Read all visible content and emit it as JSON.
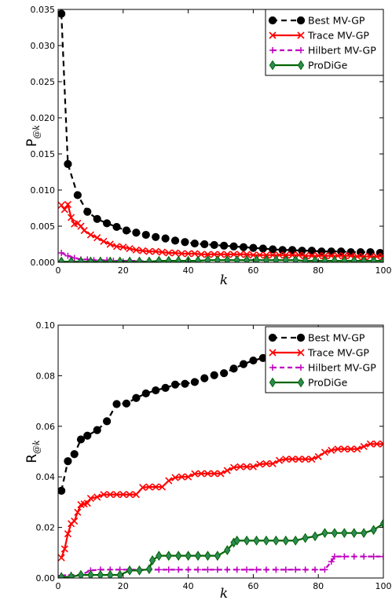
{
  "chart_data": [
    {
      "type": "line",
      "ylabel": "P",
      "ylabel_subscript": "@k",
      "xlabel": "k",
      "xlim": [
        0,
        100
      ],
      "ylim": [
        0,
        0.035
      ],
      "xticks": [
        "0",
        "20",
        "40",
        "60",
        "80",
        "100"
      ],
      "yticks": [
        "0.000",
        "0.005",
        "0.010",
        "0.015",
        "0.020",
        "0.025",
        "0.030",
        "0.035"
      ],
      "legend_position": "top-right",
      "series": [
        {
          "name": "Best MV-GP",
          "color": "#000000",
          "dash": "dashed",
          "marker": "circle",
          "x": [
            1,
            3,
            6,
            9,
            12,
            15,
            18,
            21,
            24,
            27,
            30,
            33,
            36,
            39,
            42,
            45,
            48,
            51,
            54,
            57,
            60,
            63,
            66,
            69,
            72,
            75,
            78,
            81,
            84,
            87,
            90,
            93,
            96,
            99
          ],
          "y": [
            0.0344,
            0.0136,
            0.0093,
            0.007,
            0.006,
            0.0054,
            0.0049,
            0.0044,
            0.0041,
            0.0038,
            0.0035,
            0.0033,
            0.003,
            0.0028,
            0.0026,
            0.0025,
            0.0024,
            0.0023,
            0.0022,
            0.0021,
            0.002,
            0.0019,
            0.0018,
            0.0017,
            0.0017,
            0.0016,
            0.0016,
            0.0015,
            0.0015,
            0.0015,
            0.0014,
            0.0014,
            0.0014,
            0.0013
          ]
        },
        {
          "name": "Trace MV-GP",
          "color": "#ff0000",
          "dash": "solid",
          "marker": "x",
          "x": [
            1,
            2,
            3,
            4,
            5,
            6,
            7,
            8,
            10,
            12,
            14,
            16,
            18,
            20,
            22,
            24,
            26,
            28,
            30,
            32,
            34,
            36,
            38,
            40,
            42,
            44,
            46,
            48,
            50,
            52,
            54,
            56,
            58,
            60,
            62,
            64,
            66,
            68,
            70,
            72,
            74,
            76,
            78,
            80,
            82,
            84,
            86,
            88,
            90,
            92,
            94,
            96,
            98,
            100
          ],
          "y": [
            0.0079,
            0.0073,
            0.008,
            0.0062,
            0.0053,
            0.0054,
            0.005,
            0.0044,
            0.0038,
            0.0034,
            0.0029,
            0.0025,
            0.0022,
            0.0021,
            0.0019,
            0.0017,
            0.0016,
            0.0015,
            0.0015,
            0.0014,
            0.0013,
            0.0013,
            0.0012,
            0.0012,
            0.0012,
            0.0011,
            0.0011,
            0.0011,
            0.0011,
            0.0011,
            0.0011,
            0.0011,
            0.0011,
            0.001,
            0.001,
            0.001,
            0.001,
            0.001,
            0.001,
            0.001,
            0.001,
            0.0009,
            0.0009,
            0.0009,
            0.0009,
            0.0009,
            0.0009,
            0.0009,
            0.0009,
            0.0008,
            0.0008,
            0.0008,
            0.0008,
            0.0008
          ]
        },
        {
          "name": "Hilbert MV-GP",
          "color": "#c000c0",
          "dash": "dashed",
          "marker": "plus",
          "x": [
            1,
            3,
            5,
            7,
            9,
            11,
            13,
            15,
            17,
            19,
            22,
            25,
            28
          ],
          "y": [
            0.0013,
            0.0009,
            0.0006,
            0.0004,
            0.0004,
            0.0003,
            0.0003,
            0.0003,
            0.0002,
            0.0002,
            0.0002,
            0.0002,
            0.0001
          ]
        },
        {
          "name": "ProDiGe",
          "color": "#006400",
          "fill": "#2e8b57",
          "dash": "solid",
          "marker": "diamond",
          "x": [
            1,
            4,
            7,
            10,
            13,
            16,
            19,
            22,
            25,
            28,
            31,
            34,
            37,
            40,
            43,
            46,
            49,
            52,
            55,
            58,
            61,
            64,
            67,
            70,
            73,
            76,
            79,
            82,
            85,
            88,
            91,
            94,
            97,
            100
          ],
          "y": [
            0.0001,
            0.0001,
            0.0001,
            0.0001,
            0.0001,
            0.0001,
            0.0001,
            0.0001,
            0.0001,
            0.0001,
            0.0002,
            0.0002,
            0.0002,
            0.0002,
            0.0002,
            0.0003,
            0.0003,
            0.0003,
            0.0003,
            0.0003,
            0.0003,
            0.0003,
            0.0003,
            0.0003,
            0.0003,
            0.0002,
            0.0002,
            0.0002,
            0.0002,
            0.0002,
            0.0002,
            0.0002,
            0.0002,
            0.0002
          ]
        }
      ]
    },
    {
      "type": "line",
      "ylabel": "R",
      "ylabel_subscript": "@k",
      "xlabel": "k",
      "xlim": [
        0,
        100
      ],
      "ylim": [
        0,
        0.1
      ],
      "xticks": [
        "0",
        "20",
        "40",
        "60",
        "80",
        "100"
      ],
      "yticks": [
        "0.00",
        "0.02",
        "0.04",
        "0.06",
        "0.08",
        "0.10"
      ],
      "legend_position": "top-right",
      "series": [
        {
          "name": "Best MV-GP",
          "color": "#000000",
          "dash": "dashed",
          "marker": "circle",
          "x": [
            1,
            3,
            5,
            7,
            9,
            12,
            15,
            18,
            21,
            24,
            27,
            30,
            33,
            36,
            39,
            42,
            45,
            48,
            51,
            54,
            57,
            60,
            63,
            66,
            69,
            72,
            75,
            78,
            81,
            84,
            87,
            90,
            93,
            96,
            99
          ],
          "y": [
            0.0345,
            0.0462,
            0.049,
            0.0548,
            0.0563,
            0.0585,
            0.062,
            0.0688,
            0.069,
            0.0712,
            0.073,
            0.0742,
            0.0752,
            0.0765,
            0.0768,
            0.0775,
            0.079,
            0.0802,
            0.081,
            0.0828,
            0.0846,
            0.086,
            0.087,
            0.0878,
            0.088,
            0.0888,
            0.0897,
            0.09,
            0.0905,
            0.0915,
            0.0927,
            0.093,
            0.094,
            0.095,
            0.097
          ]
        },
        {
          "name": "Trace MV-GP",
          "color": "#ff0000",
          "dash": "solid",
          "marker": "x",
          "x": [
            1,
            2,
            3,
            4,
            5,
            6,
            7,
            8,
            9,
            10,
            12,
            14,
            16,
            18,
            20,
            22,
            24,
            26,
            28,
            30,
            32,
            34,
            36,
            38,
            40,
            42,
            44,
            46,
            48,
            50,
            52,
            54,
            56,
            58,
            60,
            62,
            64,
            66,
            68,
            70,
            72,
            74,
            76,
            78,
            80,
            82,
            84,
            86,
            88,
            90,
            92,
            94,
            96,
            98,
            100
          ],
          "y": [
            0.008,
            0.0115,
            0.0175,
            0.0215,
            0.0225,
            0.026,
            0.029,
            0.0293,
            0.0296,
            0.0315,
            0.032,
            0.033,
            0.033,
            0.033,
            0.033,
            0.033,
            0.033,
            0.0358,
            0.036,
            0.036,
            0.036,
            0.0385,
            0.0397,
            0.04,
            0.04,
            0.0412,
            0.0413,
            0.0413,
            0.0413,
            0.0413,
            0.0425,
            0.0437,
            0.044,
            0.044,
            0.044,
            0.045,
            0.0452,
            0.0452,
            0.0465,
            0.047,
            0.047,
            0.047,
            0.047,
            0.047,
            0.048,
            0.0497,
            0.0505,
            0.051,
            0.051,
            0.051,
            0.051,
            0.052,
            0.053,
            0.053,
            0.053
          ]
        },
        {
          "name": "Hilbert MV-GP",
          "color": "#c000c0",
          "dash": "dashed",
          "marker": "plus",
          "x": [
            1,
            4,
            7,
            10,
            13,
            16,
            19,
            22,
            25,
            28,
            31,
            34,
            37,
            40,
            43,
            46,
            49,
            52,
            55,
            58,
            61,
            64,
            67,
            70,
            73,
            76,
            79,
            82,
            84,
            85,
            88,
            91,
            94,
            97,
            100
          ],
          "y": [
            0.001,
            0.0012,
            0.0012,
            0.003,
            0.0033,
            0.0033,
            0.0033,
            0.0033,
            0.0033,
            0.0033,
            0.0033,
            0.0033,
            0.0033,
            0.0033,
            0.0033,
            0.0033,
            0.0033,
            0.0033,
            0.0033,
            0.0033,
            0.0033,
            0.0033,
            0.0033,
            0.0033,
            0.0033,
            0.0033,
            0.0033,
            0.0033,
            0.0065,
            0.0085,
            0.0085,
            0.0085,
            0.0085,
            0.0085,
            0.0085
          ]
        },
        {
          "name": "ProDiGe",
          "color": "#006400",
          "fill": "#2e8b57",
          "dash": "solid",
          "marker": "diamond",
          "x": [
            1,
            4,
            7,
            10,
            13,
            16,
            19,
            22,
            25,
            28,
            29,
            31,
            34,
            37,
            40,
            43,
            46,
            49,
            52,
            54,
            55,
            58,
            61,
            64,
            67,
            70,
            73,
            76,
            79,
            82,
            85,
            88,
            91,
            94,
            97,
            100
          ],
          "y": [
            0.0003,
            0.0005,
            0.0012,
            0.0012,
            0.0012,
            0.0012,
            0.0012,
            0.003,
            0.003,
            0.0035,
            0.007,
            0.0088,
            0.0088,
            0.0088,
            0.0088,
            0.0088,
            0.0088,
            0.0088,
            0.011,
            0.014,
            0.0148,
            0.0148,
            0.0148,
            0.0148,
            0.0148,
            0.0148,
            0.0148,
            0.0158,
            0.0165,
            0.0178,
            0.0178,
            0.0178,
            0.0178,
            0.0178,
            0.019,
            0.0215
          ]
        }
      ]
    }
  ]
}
